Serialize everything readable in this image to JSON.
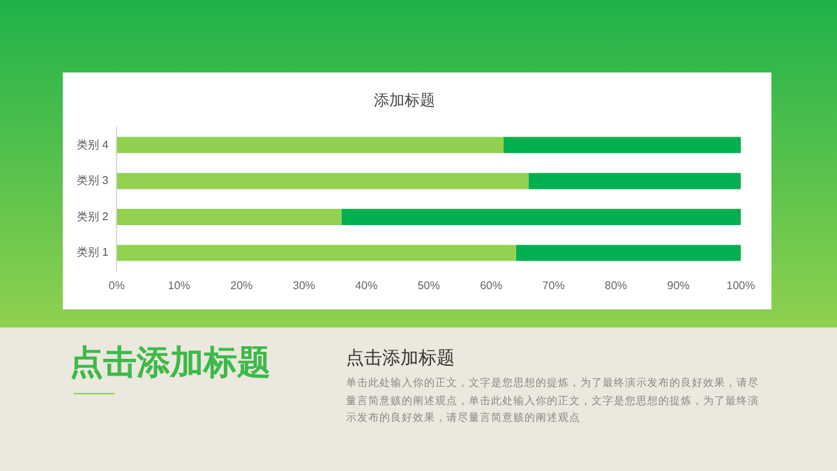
{
  "chart_data": {
    "type": "bar",
    "title": "添加标题",
    "orientation": "horizontal",
    "stacked": true,
    "categories": [
      "类别 4",
      "类别 3",
      "类别 2",
      "类别 1"
    ],
    "series": [
      {
        "color": "#92d050",
        "values": [
          62,
          66,
          36,
          64
        ]
      },
      {
        "color": "#00b050",
        "values": [
          38,
          34,
          64,
          36
        ]
      }
    ],
    "xlim": [
      0,
      100
    ],
    "xticks": [
      {
        "value": 0,
        "label": "0%"
      },
      {
        "value": 10,
        "label": "10%"
      },
      {
        "value": 20,
        "label": "20%"
      },
      {
        "value": 30,
        "label": "30%"
      },
      {
        "value": 40,
        "label": "40%"
      },
      {
        "value": 50,
        "label": "50%"
      },
      {
        "value": 60,
        "label": "60%"
      },
      {
        "value": 70,
        "label": "70%"
      },
      {
        "value": 80,
        "label": "80%"
      },
      {
        "value": 90,
        "label": "90%"
      },
      {
        "value": 100,
        "label": "100%"
      }
    ],
    "grid": false,
    "legend": false,
    "annotations": [
      "点击添加标题",
      "点击添加标题",
      "单击此处输入你的正文，文字是您思想的提炼，为了最终演示发布的良好效果，请尽量言简意赅的阐述观点，单击此处输入你的正文，文字是您思想的提炼，为了最终演示发布的良好效果，请尽量言简意赅的阐述观点"
    ]
  }
}
